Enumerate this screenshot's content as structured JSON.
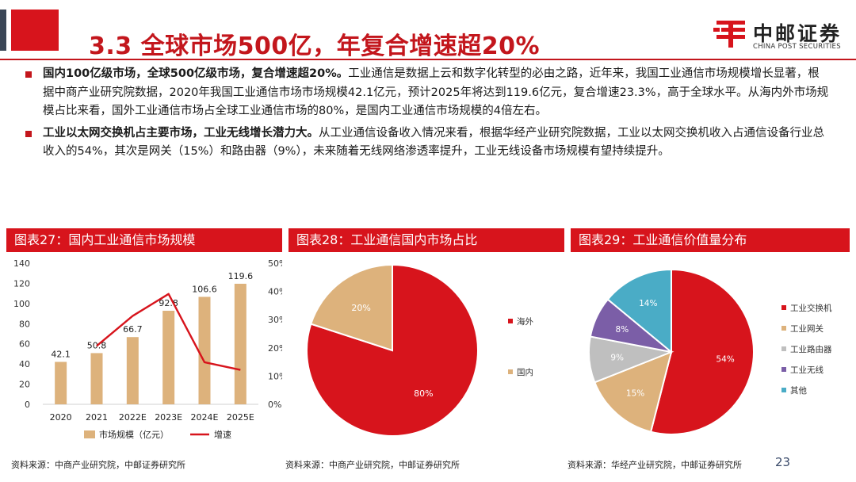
{
  "header": {
    "title": "3.3 全球市场500亿，年复合增速超20%",
    "logo_cn": "中邮证券",
    "logo_en": "CHINA POST SECURITIES"
  },
  "bullets": [
    {
      "bold": "国内100亿级市场，全球500亿级市场，复合增速超20%。",
      "text": "工业通信是数据上云和数字化转型的必由之路，近年来，我国工业通信市场规模增长显著，根据中商产业研究院数据，2020年我国工业通信市场市场规模42.1亿元，预计2025年将达到119.6亿元，复合增速23.3%，高于全球水平。从海内外市场规模占比来看，国外工业通信市场占全球工业通信市场的80%，是国内工业通信市场规模的4倍左右。"
    },
    {
      "bold": "工业以太网交换机占主要市场，工业无线增长潜力大。",
      "text": "从工业通信设备收入情况来看，根据华经产业研究院数据，工业以太网交换机收入占通信设备行业总收入的54%，其次是网关（15%）和路由器（9%），未来随着无线网络渗透率提升，工业无线设备市场规模有望持续提升。"
    }
  ],
  "panels": [
    {
      "title": "图表27：国内工业通信市场规模",
      "source": "资料来源：中商产业研究院，中邮证券研究所"
    },
    {
      "title": "图表28：工业通信国内市场占比",
      "source": "资料来源：中商产业研究院，中邮证券研究所"
    },
    {
      "title": "图表29：工业通信价值量分布",
      "source": "资料来源：华经产业研究院，中邮证券研究所"
    }
  ],
  "page_number": "23",
  "colors": {
    "brand_red": "#d7141c",
    "bar_tan": "#ddb27c",
    "line_red": "#d7141c",
    "gray": "#bfbfbf",
    "purple": "#7b5ea7",
    "teal": "#4aacc6"
  },
  "chart_data": [
    {
      "type": "bar",
      "categories": [
        "2020",
        "2021",
        "2022E",
        "2023E",
        "2024E",
        "2025E"
      ],
      "series": [
        {
          "name": "市场规模（亿元）",
          "type": "bar",
          "axis": "left",
          "values": [
            42.1,
            50.8,
            66.7,
            92.8,
            106.6,
            119.6
          ],
          "labels": [
            "42.1",
            "50.8",
            "66.7",
            "92.8",
            "106.6",
            "119.6"
          ]
        },
        {
          "name": "增速",
          "type": "line",
          "axis": "right",
          "values": [
            null,
            0.207,
            0.313,
            0.391,
            0.149,
            0.122
          ]
        }
      ],
      "ylim": [
        0,
        140
      ],
      "yticks": [
        "0",
        "20",
        "40",
        "60",
        "80",
        "100",
        "120",
        "140"
      ],
      "y2lim": [
        0,
        0.5
      ],
      "y2ticks": [
        "0%",
        "10%",
        "20%",
        "30%",
        "40%",
        "50%"
      ],
      "legend": "bottom"
    },
    {
      "type": "pie",
      "labels": [
        "海外",
        "国内"
      ],
      "values": [
        80,
        20
      ],
      "value_labels": [
        "80%",
        "20%"
      ],
      "colors": [
        "#d7141c",
        "#ddb27c"
      ],
      "legend": "right"
    },
    {
      "type": "pie",
      "labels": [
        "工业交换机",
        "工业网关",
        "工业路由器",
        "工业无线",
        "其他"
      ],
      "values": [
        54,
        15,
        9,
        8,
        14
      ],
      "value_labels": [
        "54%",
        "15%",
        "9%",
        "8%",
        "14%"
      ],
      "colors": [
        "#d7141c",
        "#ddb27c",
        "#bfbfbf",
        "#7b5ea7",
        "#4aacc6"
      ],
      "legend": "right"
    }
  ]
}
